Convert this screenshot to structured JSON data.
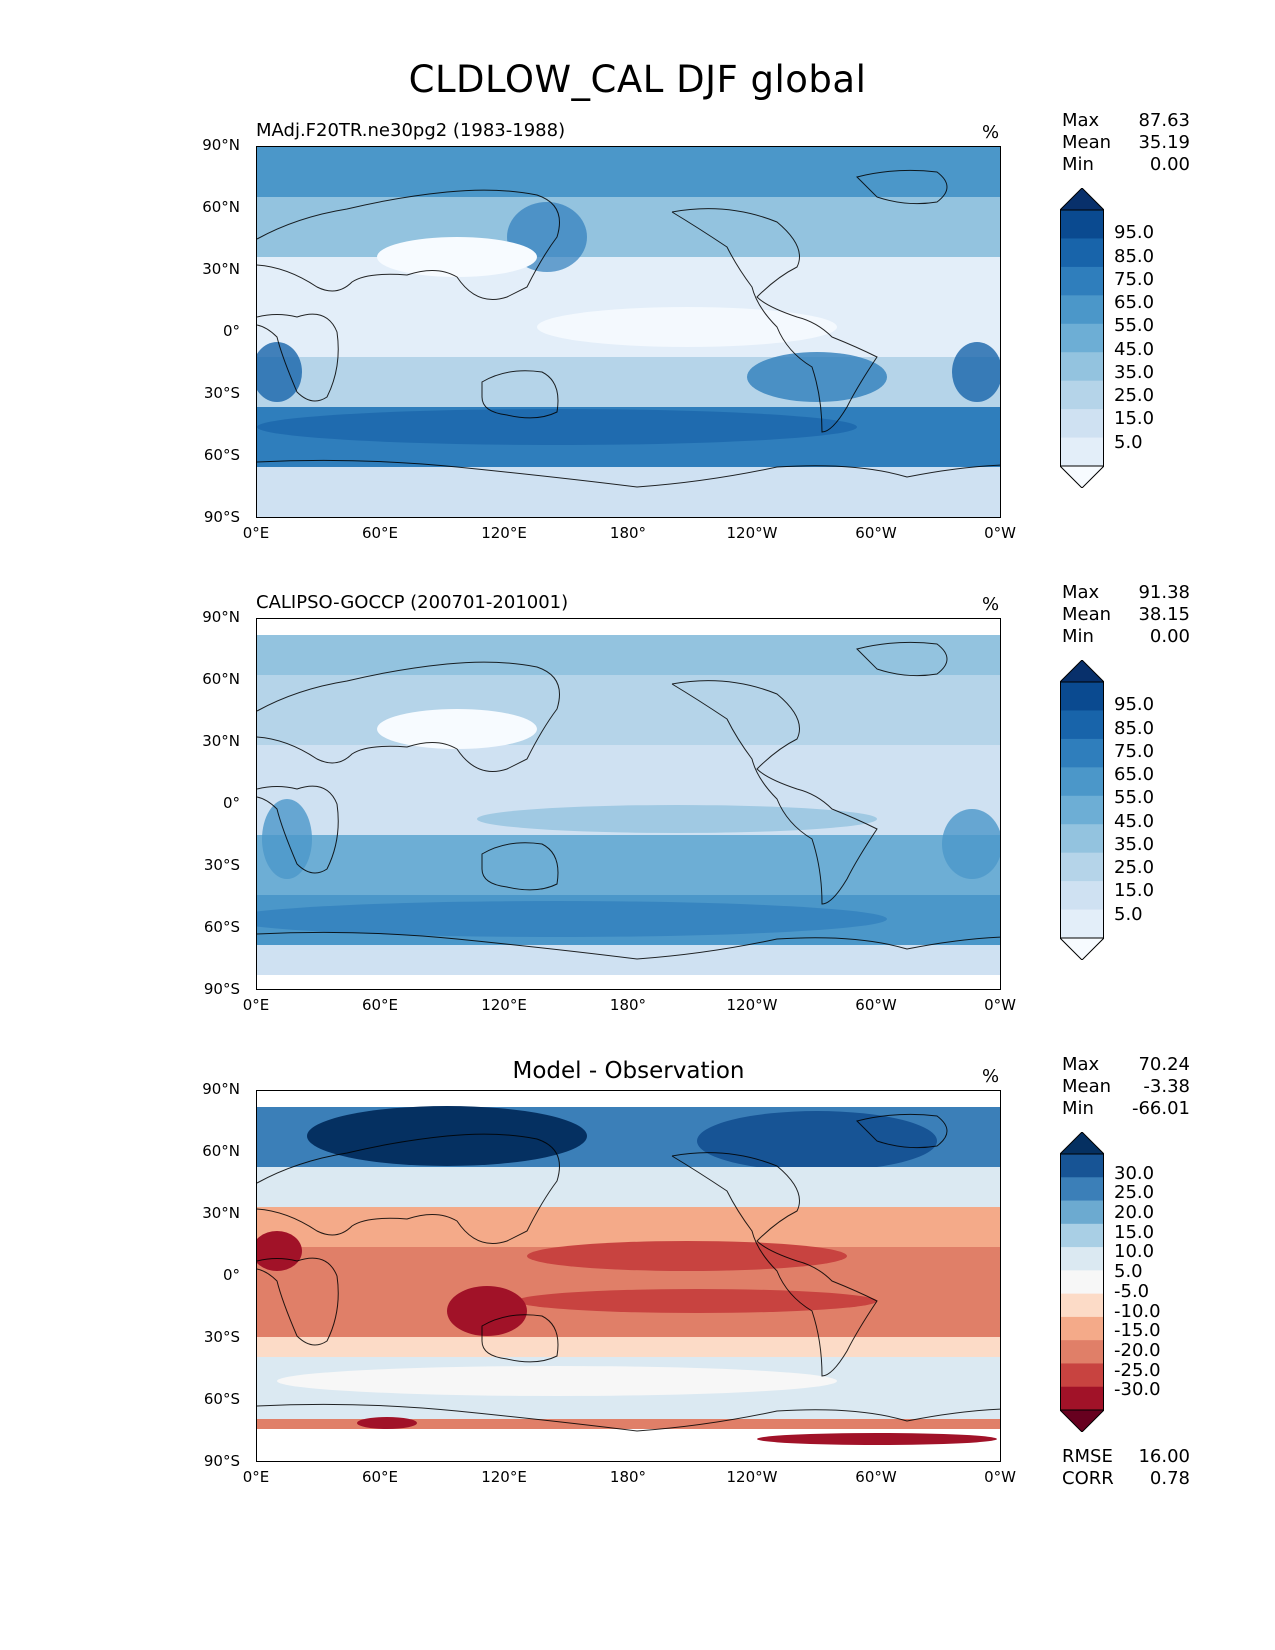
{
  "figure": {
    "title": "CLDLOW_CAL DJF global"
  },
  "axes": {
    "yticks": [
      "90°N",
      "60°N",
      "30°N",
      "0°",
      "30°S",
      "60°S",
      "90°S"
    ],
    "xticks": [
      "0°E",
      "60°E",
      "120°E",
      "180°",
      "120°W",
      "60°W",
      "0°W"
    ]
  },
  "panels": [
    {
      "title": "MAdj.F20TR.ne30pg2 (1983-1988)",
      "units": "%",
      "stats": {
        "max_label": "Max",
        "max": "87.63",
        "mean_label": "Mean",
        "mean": "35.19",
        "min_label": "Min",
        "min": "0.00"
      },
      "colorbar_labels": [
        "95.0",
        "85.0",
        "75.0",
        "65.0",
        "55.0",
        "45.0",
        "35.0",
        "25.0",
        "15.0",
        "5.0"
      ]
    },
    {
      "title": "CALIPSO-GOCCP (200701-201001)",
      "units": "%",
      "stats": {
        "max_label": "Max",
        "max": "91.38",
        "mean_label": "Mean",
        "mean": "38.15",
        "min_label": "Min",
        "min": "0.00"
      },
      "colorbar_labels": [
        "95.0",
        "85.0",
        "75.0",
        "65.0",
        "55.0",
        "45.0",
        "35.0",
        "25.0",
        "15.0",
        "5.0"
      ]
    },
    {
      "title": "Model - Observation",
      "units": "%",
      "stats": {
        "max_label": "Max",
        "max": "70.24",
        "mean_label": "Mean",
        "mean": "-3.38",
        "min_label": "Min",
        "min": "-66.01"
      },
      "colorbar_labels": [
        "30.0",
        "25.0",
        "20.0",
        "15.0",
        "10.0",
        "5.0",
        "-5.0",
        "-10.0",
        "-15.0",
        "-20.0",
        "-25.0",
        "-30.0"
      ],
      "rmse_label": "RMSE",
      "rmse": "16.00",
      "corr_label": "CORR",
      "corr": "0.78"
    }
  ],
  "colors": {
    "blues": [
      "#f7fbff",
      "#deebf7",
      "#c6dbef",
      "#9ecae1",
      "#6baed6",
      "#4292c6",
      "#2171b5",
      "#08519c",
      "#08306b"
    ],
    "cbar_seq": [
      "#f7fbff",
      "#e3eef9",
      "#cfe1f2",
      "#b5d4e9",
      "#93c3df",
      "#6daed5",
      "#4b97c9",
      "#2f7ebc",
      "#1864aa",
      "#0a4a90",
      "#08306b"
    ],
    "cbar_div": [
      "#67001f",
      "#a11228",
      "#c84340",
      "#e07f68",
      "#f4aa89",
      "#fcdbc7",
      "#f7f7f7",
      "#dbe9f2",
      "#a9cfe5",
      "#6caad0",
      "#3b7fb8",
      "#175495",
      "#053061"
    ],
    "land_line": "#000000"
  }
}
